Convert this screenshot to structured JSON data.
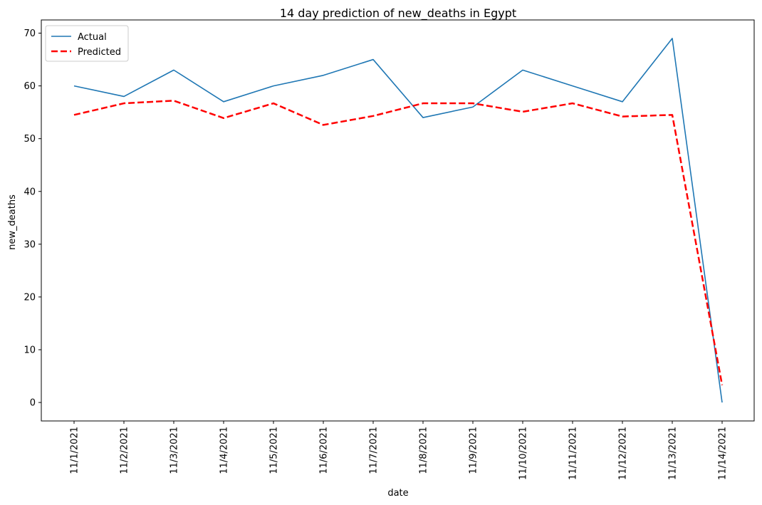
{
  "chart_data": {
    "type": "line",
    "title": "14 day prediction of new_deaths in Egypt",
    "xlabel": "date",
    "ylabel": "new_deaths",
    "categories": [
      "11/1/2021",
      "11/2/2021",
      "11/3/2021",
      "11/4/2021",
      "11/5/2021",
      "11/6/2021",
      "11/7/2021",
      "11/8/2021",
      "11/9/2021",
      "11/10/2021",
      "11/11/2021",
      "11/12/2021",
      "11/13/2021",
      "11/14/2021"
    ],
    "ylim": [
      -3.5,
      72.5
    ],
    "yticks": [
      0,
      10,
      20,
      30,
      40,
      50,
      60,
      70
    ],
    "grid": false,
    "legend_position": "top-left",
    "series": [
      {
        "name": "Actual",
        "color": "#1f77b4",
        "style": "solid",
        "values": [
          60,
          58,
          63,
          57,
          60,
          62,
          65,
          54,
          56,
          63,
          60,
          57,
          69,
          0
        ]
      },
      {
        "name": "Predicted",
        "color": "#ff0000",
        "style": "dashed",
        "values": [
          54.5,
          56.7,
          57.2,
          53.9,
          56.7,
          52.6,
          54.3,
          56.7,
          56.7,
          55.1,
          56.7,
          54.2,
          54.5,
          3.3
        ]
      }
    ]
  }
}
